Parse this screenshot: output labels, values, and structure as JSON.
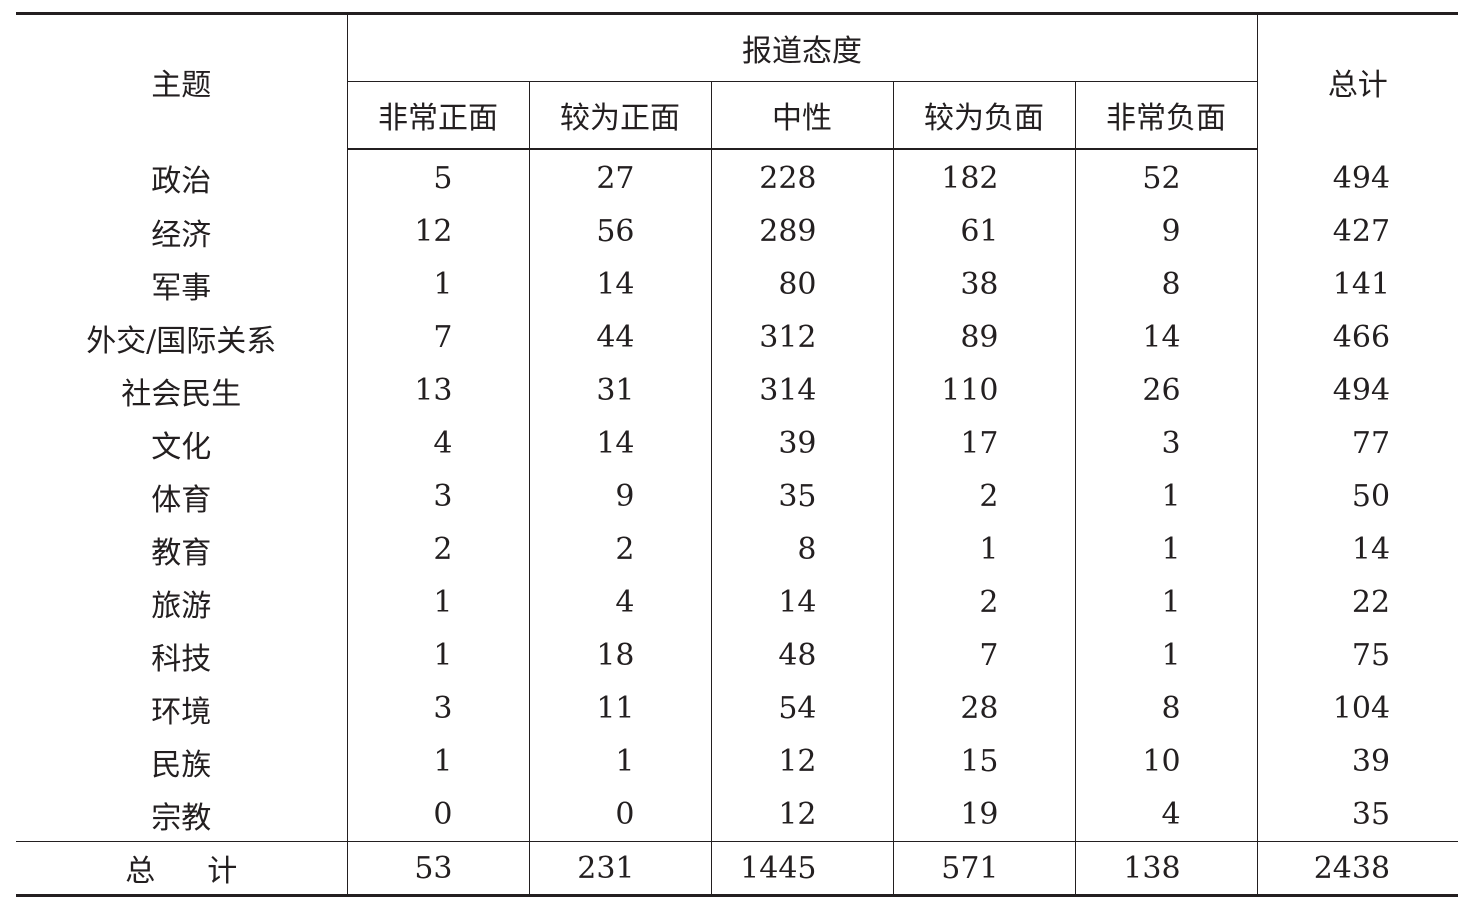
{
  "table": {
    "topic_header": "主题",
    "group_header": "报道态度",
    "total_header": "总计",
    "columns": [
      "非常正面",
      "较为正面",
      "中性",
      "较为负面",
      "非常负面"
    ],
    "rows": [
      {
        "topic": "政治",
        "values": [
          "5",
          "27",
          "228",
          "182",
          "52"
        ],
        "total": "494"
      },
      {
        "topic": "经济",
        "values": [
          "12",
          "56",
          "289",
          "61",
          "9"
        ],
        "total": "427"
      },
      {
        "topic": "军事",
        "values": [
          "1",
          "14",
          "80",
          "38",
          "8"
        ],
        "total": "141"
      },
      {
        "topic": "外交/国际关系",
        "values": [
          "7",
          "44",
          "312",
          "89",
          "14"
        ],
        "total": "466"
      },
      {
        "topic": "社会民生",
        "values": [
          "13",
          "31",
          "314",
          "110",
          "26"
        ],
        "total": "494"
      },
      {
        "topic": "文化",
        "values": [
          "4",
          "14",
          "39",
          "17",
          "3"
        ],
        "total": "77"
      },
      {
        "topic": "体育",
        "values": [
          "3",
          "9",
          "35",
          "2",
          "1"
        ],
        "total": "50"
      },
      {
        "topic": "教育",
        "values": [
          "2",
          "2",
          "8",
          "1",
          "1"
        ],
        "total": "14"
      },
      {
        "topic": "旅游",
        "values": [
          "1",
          "4",
          "14",
          "2",
          "1"
        ],
        "total": "22"
      },
      {
        "topic": "科技",
        "values": [
          "1",
          "18",
          "48",
          "7",
          "1"
        ],
        "total": "75"
      },
      {
        "topic": "环境",
        "values": [
          "3",
          "11",
          "54",
          "28",
          "8"
        ],
        "total": "104"
      },
      {
        "topic": "民族",
        "values": [
          "1",
          "1",
          "12",
          "15",
          "10"
        ],
        "total": "39"
      },
      {
        "topic": "宗教",
        "values": [
          "0",
          "0",
          "12",
          "19",
          "4"
        ],
        "total": "35"
      }
    ],
    "footer": {
      "label": "总　计",
      "label_chars": [
        "总",
        "计"
      ],
      "values": [
        "53",
        "231",
        "1445",
        "571",
        "138"
      ],
      "total": "2438"
    }
  }
}
